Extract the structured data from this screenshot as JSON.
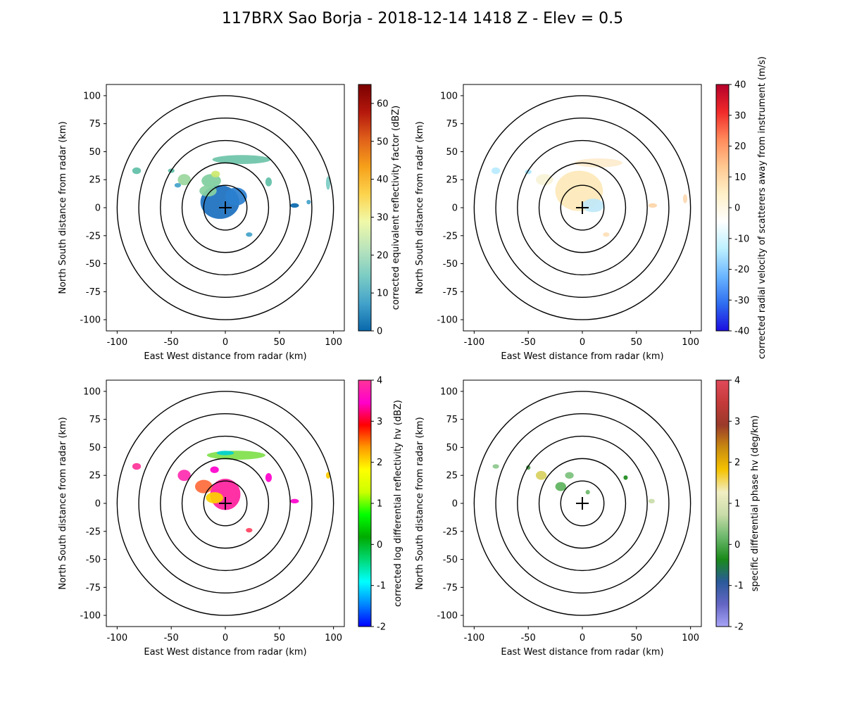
{
  "figure_title": "117BRX Sao Borja - 2018-12-14 1418 Z -  Elev = 0.5",
  "chart_data": [
    {
      "type": "heatmap",
      "field": "reflectivity",
      "xlabel": "East West distance from radar (km)",
      "ylabel": "North South distance from radar (km)",
      "xlim": [
        -110,
        110
      ],
      "ylim": [
        -110,
        110
      ],
      "xticks": [
        -100,
        -50,
        0,
        50,
        100
      ],
      "yticks": [
        -100,
        -75,
        -50,
        -25,
        0,
        25,
        50,
        75,
        100
      ],
      "range_rings_km": [
        20,
        40,
        60,
        80,
        100
      ],
      "colorbar": {
        "label": "corrected equivalent reflectivity factor (dBZ)",
        "min": 0,
        "max": 65,
        "ticks": [
          0,
          10,
          20,
          30,
          40,
          50,
          60
        ],
        "colors": [
          "#0868ac",
          "#43a2ca",
          "#7bccc4",
          "#bae4bc",
          "#f0f9a8",
          "#fdd34d",
          "#f6a01a",
          "#e0601a",
          "#b4170c",
          "#7a0000"
        ]
      },
      "echoes": [
        {
          "x": -5,
          "y": 5,
          "rx": 18,
          "ry": 15,
          "color": "#1b6fbf"
        },
        {
          "x": 10,
          "y": 10,
          "rx": 10,
          "ry": 8,
          "color": "#2b7fcf"
        },
        {
          "x": 15,
          "y": 43,
          "rx": 27,
          "ry": 4,
          "color": "#6cc3a8"
        },
        {
          "x": -13,
          "y": 24,
          "rx": 9,
          "ry": 6,
          "color": "#7fce9e"
        },
        {
          "x": -38,
          "y": 25,
          "rx": 6,
          "ry": 5,
          "color": "#9ad69c"
        },
        {
          "x": -16,
          "y": 15,
          "rx": 8,
          "ry": 5,
          "color": "#88d1a0"
        },
        {
          "x": 40,
          "y": 23,
          "rx": 3,
          "ry": 4,
          "color": "#5fbfa7"
        },
        {
          "x": -82,
          "y": 33,
          "rx": 4,
          "ry": 3,
          "color": "#5fbfa7"
        },
        {
          "x": -50,
          "y": 33,
          "rx": 3,
          "ry": 2,
          "color": "#5fbfa7"
        },
        {
          "x": 64,
          "y": 2,
          "rx": 4,
          "ry": 2,
          "color": "#0868ac"
        },
        {
          "x": 77,
          "y": 5,
          "rx": 2,
          "ry": 2,
          "color": "#43a2ca"
        },
        {
          "x": 95,
          "y": 22,
          "rx": 2,
          "ry": 6,
          "color": "#7bccc4"
        },
        {
          "x": 22,
          "y": -24,
          "rx": 3,
          "ry": 2,
          "color": "#43a2ca"
        },
        {
          "x": -9,
          "y": 30,
          "rx": 4,
          "ry": 3,
          "color": "#cde96f"
        },
        {
          "x": -44,
          "y": 20,
          "rx": 3,
          "ry": 2,
          "color": "#43a2ca"
        }
      ]
    },
    {
      "type": "heatmap",
      "field": "velocity",
      "xlabel": "East West distance from radar (km)",
      "ylabel": "North South distance from radar (km)",
      "xlim": [
        -110,
        110
      ],
      "ylim": [
        -110,
        110
      ],
      "xticks": [
        -100,
        -50,
        0,
        50,
        100
      ],
      "yticks": [
        -100,
        -75,
        -50,
        -25,
        0,
        25,
        50,
        75,
        100
      ],
      "range_rings_km": [
        20,
        40,
        60,
        80,
        100
      ],
      "colorbar": {
        "label": "corrected radial velocity of scatterers away from instrument (m/s)",
        "min": -40,
        "max": 40,
        "ticks": [
          -40,
          -30,
          -20,
          -10,
          0,
          10,
          20,
          30,
          40
        ],
        "colors": [
          "#1c0de0",
          "#2f6ef0",
          "#6bb6ff",
          "#bdf0ff",
          "#ffffff",
          "#fff0c8",
          "#ffc891",
          "#ff8a5a",
          "#f02a2a",
          "#b4002a"
        ]
      },
      "echoes": [
        {
          "x": -3,
          "y": 15,
          "rx": 22,
          "ry": 18,
          "color": "#fde8b8"
        },
        {
          "x": 15,
          "y": 40,
          "rx": 22,
          "ry": 4,
          "color": "#fdeccd"
        },
        {
          "x": 10,
          "y": 2,
          "rx": 10,
          "ry": 6,
          "color": "#bfe8f8"
        },
        {
          "x": -35,
          "y": 25,
          "rx": 8,
          "ry": 5,
          "color": "#f7f3d7"
        },
        {
          "x": -80,
          "y": 33,
          "rx": 4,
          "ry": 3,
          "color": "#b8eaff"
        },
        {
          "x": -50,
          "y": 32,
          "rx": 3,
          "ry": 2,
          "color": "#a7e4ff"
        },
        {
          "x": 65,
          "y": 2,
          "rx": 4,
          "ry": 2,
          "color": "#fcd5a8"
        },
        {
          "x": 95,
          "y": 8,
          "rx": 2,
          "ry": 4,
          "color": "#fdd9b0"
        },
        {
          "x": 22,
          "y": -24,
          "rx": 3,
          "ry": 2,
          "color": "#fddfb8"
        }
      ]
    },
    {
      "type": "heatmap",
      "field": "differential_reflectivity",
      "xlabel": "East West distance from radar (km)",
      "ylabel": "North South distance from radar (km)",
      "xlim": [
        -110,
        110
      ],
      "ylim": [
        -110,
        110
      ],
      "xticks": [
        -100,
        -50,
        0,
        50,
        100
      ],
      "yticks": [
        -100,
        -75,
        -50,
        -25,
        0,
        25,
        50,
        75,
        100
      ],
      "range_rings_km": [
        20,
        40,
        60,
        80,
        100
      ],
      "colorbar": {
        "label": "corrected log differential reflectivity hv (dBZ)",
        "min": -2,
        "max": 4,
        "ticks": [
          -2,
          -1,
          0,
          1,
          2,
          3,
          4
        ],
        "colors": [
          "#0000ff",
          "#0088ff",
          "#00ffff",
          "#00d873",
          "#00aa00",
          "#00ff00",
          "#ccff00",
          "#ffff00",
          "#ff9900",
          "#ff0000",
          "#ff00cc",
          "#ff3399"
        ]
      },
      "echoes": [
        {
          "x": 0,
          "y": 8,
          "rx": 14,
          "ry": 14,
          "color": "#ff1f9d"
        },
        {
          "x": -10,
          "y": 5,
          "rx": 8,
          "ry": 5,
          "color": "#ffd000"
        },
        {
          "x": 10,
          "y": 43,
          "rx": 27,
          "ry": 4,
          "color": "#7fe04a"
        },
        {
          "x": 0,
          "y": 45,
          "rx": 8,
          "ry": 2,
          "color": "#00d0d0"
        },
        {
          "x": -38,
          "y": 25,
          "rx": 6,
          "ry": 5,
          "color": "#ff2bb0"
        },
        {
          "x": -20,
          "y": 15,
          "rx": 8,
          "ry": 6,
          "color": "#ff6a3a"
        },
        {
          "x": 40,
          "y": 23,
          "rx": 3,
          "ry": 4,
          "color": "#ff00cc"
        },
        {
          "x": -82,
          "y": 33,
          "rx": 4,
          "ry": 3,
          "color": "#ff3399"
        },
        {
          "x": 64,
          "y": 2,
          "rx": 4,
          "ry": 2,
          "color": "#ff00cc"
        },
        {
          "x": 95,
          "y": 25,
          "rx": 2,
          "ry": 3,
          "color": "#ffcc00"
        },
        {
          "x": 22,
          "y": -24,
          "rx": 3,
          "ry": 2,
          "color": "#ff4060"
        },
        {
          "x": -10,
          "y": 30,
          "rx": 4,
          "ry": 3,
          "color": "#ff00cc"
        }
      ]
    },
    {
      "type": "heatmap",
      "field": "specific_differential_phase",
      "xlabel": "East West distance from radar (km)",
      "ylabel": "North South distance from radar (km)",
      "xlim": [
        -110,
        110
      ],
      "ylim": [
        -110,
        110
      ],
      "xticks": [
        -100,
        -50,
        0,
        50,
        100
      ],
      "yticks": [
        -100,
        -75,
        -50,
        -25,
        0,
        25,
        50,
        75,
        100
      ],
      "range_rings_km": [
        20,
        40,
        60,
        80,
        100
      ],
      "colorbar": {
        "label": "specific differential phase hv (deg/km)",
        "min": -2,
        "max": 4,
        "ticks": [
          -2,
          -1,
          0,
          1,
          2,
          3,
          4
        ],
        "colors": [
          "#a7a4f7",
          "#6466c4",
          "#2a5a9a",
          "#1a8a1a",
          "#6cb86c",
          "#c9dca9",
          "#f2eec4",
          "#f5c200",
          "#c98a10",
          "#9a3a2a",
          "#c43a3a",
          "#e04a5a"
        ]
      },
      "echoes": [
        {
          "x": -38,
          "y": 25,
          "rx": 5,
          "ry": 4,
          "color": "#d8d060"
        },
        {
          "x": -20,
          "y": 15,
          "rx": 5,
          "ry": 4,
          "color": "#5db35d"
        },
        {
          "x": -12,
          "y": 25,
          "rx": 4,
          "ry": 3,
          "color": "#7bc07b"
        },
        {
          "x": 40,
          "y": 23,
          "rx": 2,
          "ry": 2,
          "color": "#1a8a1a"
        },
        {
          "x": -80,
          "y": 33,
          "rx": 3,
          "ry": 2,
          "color": "#8cc88c"
        },
        {
          "x": -50,
          "y": 32,
          "rx": 2,
          "ry": 2,
          "color": "#4a9a4a"
        },
        {
          "x": 64,
          "y": 2,
          "rx": 3,
          "ry": 2,
          "color": "#c9dca9"
        },
        {
          "x": 5,
          "y": 10,
          "rx": 2,
          "ry": 2,
          "color": "#6cb86c"
        }
      ]
    }
  ]
}
